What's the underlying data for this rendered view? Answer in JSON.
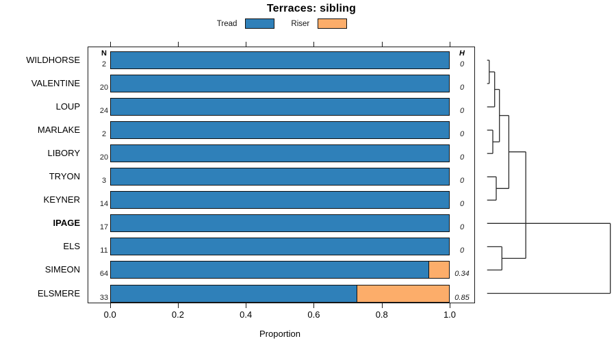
{
  "title": "Terraces: sibling",
  "legend": {
    "items": [
      {
        "label": "Tread",
        "color": "#2F80B9"
      },
      {
        "label": "Riser",
        "color": "#FCAD6A"
      }
    ]
  },
  "columns": {
    "n_header": "N",
    "h_header": "H"
  },
  "xlabel": "Proportion",
  "chart_data": {
    "type": "bar",
    "orientation": "horizontal-stacked",
    "title": "Terraces: sibling",
    "xlabel": "Proportion",
    "xlim": [
      0,
      1
    ],
    "x_ticks": [
      {
        "value": 0.0,
        "label": "0.0"
      },
      {
        "value": 0.2,
        "label": "0.2"
      },
      {
        "value": 0.4,
        "label": "0.4"
      },
      {
        "value": 0.6,
        "label": "0.6"
      },
      {
        "value": 0.8,
        "label": "0.8"
      },
      {
        "value": 1.0,
        "label": "1.0"
      }
    ],
    "series_names": [
      "Tread",
      "Riser"
    ],
    "colors": {
      "tread": "#2F80B9",
      "riser": "#FCAD6A"
    },
    "rows": [
      {
        "site": "WILDHORSE",
        "n": "2",
        "tread": 1.0,
        "riser": 0.0,
        "h": "0",
        "bold": false
      },
      {
        "site": "VALENTINE",
        "n": "20",
        "tread": 1.0,
        "riser": 0.0,
        "h": "0",
        "bold": false
      },
      {
        "site": "LOUP",
        "n": "24",
        "tread": 1.0,
        "riser": 0.0,
        "h": "0",
        "bold": false
      },
      {
        "site": "MARLAKE",
        "n": "2",
        "tread": 1.0,
        "riser": 0.0,
        "h": "0",
        "bold": false
      },
      {
        "site": "LIBORY",
        "n": "20",
        "tread": 1.0,
        "riser": 0.0,
        "h": "0",
        "bold": false
      },
      {
        "site": "TRYON",
        "n": "3",
        "tread": 1.0,
        "riser": 0.0,
        "h": "0",
        "bold": false
      },
      {
        "site": "KEYNER",
        "n": "14",
        "tread": 1.0,
        "riser": 0.0,
        "h": "0",
        "bold": false
      },
      {
        "site": "IPAGE",
        "n": "17",
        "tread": 1.0,
        "riser": 0.0,
        "h": "0",
        "bold": true
      },
      {
        "site": "ELS",
        "n": "11",
        "tread": 1.0,
        "riser": 0.0,
        "h": "0",
        "bold": false
      },
      {
        "site": "SIMEON",
        "n": "64",
        "tread": 0.94,
        "riser": 0.06,
        "h": "0.34",
        "bold": false
      },
      {
        "site": "ELSMERE",
        "n": "33",
        "tread": 0.73,
        "riser": 0.27,
        "h": "0.85",
        "bold": false
      }
    ],
    "dendrogram": {
      "note": "x is 0..1 across dendrogram width (root at 1), y in row units (0=WILDHORSE .. 10=ELSMERE)",
      "h_segments": [
        [
          0,
          0,
          0.017,
          0
        ],
        [
          0,
          1,
          0.017,
          1
        ],
        [
          0.017,
          0.5,
          0.061,
          0.5
        ],
        [
          0,
          2,
          0.061,
          2
        ],
        [
          0.061,
          1.25,
          0.1,
          1.25
        ],
        [
          0,
          3,
          0.046,
          3
        ],
        [
          0,
          4,
          0.046,
          4
        ],
        [
          0.046,
          3.5,
          0.1,
          3.5
        ],
        [
          0.1,
          2.37,
          0.176,
          2.37
        ],
        [
          0,
          5,
          0.074,
          5
        ],
        [
          0,
          6,
          0.074,
          6
        ],
        [
          0.074,
          5.5,
          0.176,
          5.5
        ],
        [
          0.176,
          3.93,
          0.314,
          3.93
        ],
        [
          0,
          8,
          0.12,
          8
        ],
        [
          0,
          9,
          0.12,
          9
        ],
        [
          0.12,
          8.5,
          0.314,
          8.5
        ],
        [
          0,
          7,
          1.0,
          7
        ],
        [
          0,
          10,
          1.0,
          10
        ]
      ],
      "v_segments": [
        [
          0.017,
          0,
          0.017,
          1
        ],
        [
          0.061,
          0.5,
          0.061,
          2
        ],
        [
          0.046,
          3,
          0.046,
          4
        ],
        [
          0.1,
          1.25,
          0.1,
          3.5
        ],
        [
          0.074,
          5,
          0.074,
          6
        ],
        [
          0.176,
          2.37,
          0.176,
          5.5
        ],
        [
          0.314,
          3.93,
          0.314,
          8.5
        ],
        [
          0.12,
          8,
          0.12,
          9
        ],
        [
          1.0,
          7,
          1.0,
          10
        ]
      ]
    }
  }
}
